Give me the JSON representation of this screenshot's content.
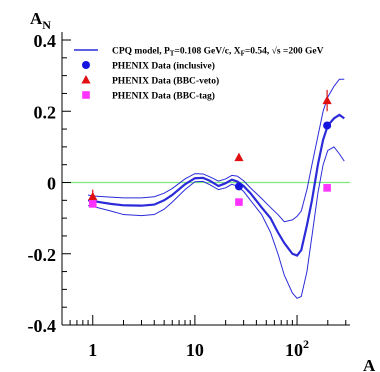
{
  "chart_data": {
    "type": "line",
    "ylabel": "A",
    "ylabel_sub": "N",
    "xlabel": "A",
    "xscale": "log",
    "xlim": [
      0.5,
      330
    ],
    "ylim": [
      -0.4,
      0.4
    ],
    "y_ticks": [
      {
        "value": 0.4,
        "label": "0.4"
      },
      {
        "value": 0.2,
        "label": "0.2"
      },
      {
        "value": 0,
        "label": "0"
      },
      {
        "value": -0.2,
        "label": "-0.2"
      },
      {
        "value": -0.4,
        "label": "-0.4"
      }
    ],
    "x_ticks": [
      {
        "value": 1,
        "label": "1"
      },
      {
        "value": 10,
        "label": "10"
      },
      {
        "value": 100,
        "label": "10",
        "sup": "2"
      }
    ],
    "zero_line_color": "#7ee87e",
    "model_color": "#2b2bd9",
    "legend_position": "top",
    "legend": [
      {
        "marker": "line",
        "color": "#2b2bd9",
        "parts": [
          {
            "t": "CPQ model, P"
          },
          {
            "t": "T",
            "sub": true
          },
          {
            "t": "=0.108 GeV/c, X"
          },
          {
            "t": "F",
            "sub": true
          },
          {
            "t": "=0.54, √s =200 GeV"
          }
        ]
      },
      {
        "marker": "circle",
        "color": "#1515e0",
        "parts": [
          {
            "t": "PHENIX Data (inclusive)"
          }
        ]
      },
      {
        "marker": "triangle",
        "color": "#e01010",
        "parts": [
          {
            "t": "PHENIX Data (BBC-veto)"
          }
        ]
      },
      {
        "marker": "square",
        "color": "#ff33ff",
        "parts": [
          {
            "t": "PHENIX Data (BBC-tag)"
          }
        ]
      }
    ],
    "series": [
      {
        "name": "PHENIX Data (inclusive)",
        "marker": "circle",
        "color": "#1515e0",
        "points": [
          {
            "x": 1,
            "y": -0.05,
            "err": 0.012
          },
          {
            "x": 27,
            "y": -0.011,
            "err": 0.006
          },
          {
            "x": 197,
            "y": 0.16,
            "err": 0.01
          }
        ]
      },
      {
        "name": "PHENIX Data (BBC-veto)",
        "marker": "triangle",
        "color": "#e01010",
        "points": [
          {
            "x": 1,
            "y": -0.04,
            "err": 0.02
          },
          {
            "x": 27,
            "y": 0.07,
            "err": 0.005
          },
          {
            "x": 197,
            "y": 0.23,
            "err": 0.03
          }
        ]
      },
      {
        "name": "PHENIX Data (BBC-tag)",
        "marker": "square",
        "color": "#ff33ff",
        "points": [
          {
            "x": 1,
            "y": -0.06,
            "err": 0.004
          },
          {
            "x": 27,
            "y": -0.055,
            "err": 0.004
          },
          {
            "x": 197,
            "y": -0.015,
            "err": 0.004
          }
        ]
      }
    ],
    "model": {
      "central": [
        [
          0.9,
          -0.05
        ],
        [
          1,
          -0.052
        ],
        [
          1.5,
          -0.06
        ],
        [
          2,
          -0.064
        ],
        [
          3,
          -0.065
        ],
        [
          4,
          -0.062
        ],
        [
          5,
          -0.05
        ],
        [
          6,
          -0.035
        ],
        [
          8,
          -0.005
        ],
        [
          10,
          0.012
        ],
        [
          12,
          0.013
        ],
        [
          14,
          0.005
        ],
        [
          17,
          -0.01
        ],
        [
          20,
          -0.002
        ],
        [
          23,
          0.008
        ],
        [
          26,
          0.003
        ],
        [
          30,
          -0.01
        ],
        [
          35,
          -0.03
        ],
        [
          45,
          -0.07
        ],
        [
          55,
          -0.1
        ],
        [
          65,
          -0.14
        ],
        [
          75,
          -0.17
        ],
        [
          90,
          -0.2
        ],
        [
          100,
          -0.205
        ],
        [
          110,
          -0.19
        ],
        [
          125,
          -0.12
        ],
        [
          140,
          -0.05
        ],
        [
          160,
          0.05
        ],
        [
          180,
          0.12
        ],
        [
          200,
          0.16
        ],
        [
          230,
          0.18
        ],
        [
          260,
          0.19
        ],
        [
          290,
          0.18
        ]
      ],
      "upper": [
        [
          0.9,
          -0.035
        ],
        [
          1,
          -0.038
        ],
        [
          1.5,
          -0.041
        ],
        [
          2,
          -0.043
        ],
        [
          3,
          -0.043
        ],
        [
          4,
          -0.04
        ],
        [
          5,
          -0.03
        ],
        [
          6,
          -0.017
        ],
        [
          8,
          0.01
        ],
        [
          10,
          0.025
        ],
        [
          12,
          0.024
        ],
        [
          14,
          0.016
        ],
        [
          17,
          0.004
        ],
        [
          20,
          0.01
        ],
        [
          23,
          0.02
        ],
        [
          26,
          0.018
        ],
        [
          30,
          0.005
        ],
        [
          35,
          -0.015
        ],
        [
          45,
          -0.045
        ],
        [
          55,
          -0.07
        ],
        [
          65,
          -0.09
        ],
        [
          75,
          -0.11
        ],
        [
          90,
          -0.105
        ],
        [
          100,
          -0.095
        ],
        [
          110,
          -0.08
        ],
        [
          125,
          -0.02
        ],
        [
          140,
          0.05
        ],
        [
          160,
          0.13
        ],
        [
          180,
          0.2
        ],
        [
          200,
          0.24
        ],
        [
          230,
          0.27
        ],
        [
          260,
          0.29
        ],
        [
          290,
          0.29
        ]
      ],
      "lower": [
        [
          0.9,
          -0.065
        ],
        [
          1,
          -0.067
        ],
        [
          1.5,
          -0.08
        ],
        [
          2,
          -0.09
        ],
        [
          3,
          -0.093
        ],
        [
          4,
          -0.09
        ],
        [
          5,
          -0.075
        ],
        [
          6,
          -0.055
        ],
        [
          8,
          -0.02
        ],
        [
          10,
          0.002
        ],
        [
          12,
          0.003
        ],
        [
          14,
          -0.006
        ],
        [
          17,
          -0.02
        ],
        [
          20,
          -0.015
        ],
        [
          23,
          -0.005
        ],
        [
          26,
          -0.01
        ],
        [
          30,
          -0.025
        ],
        [
          35,
          -0.05
        ],
        [
          45,
          -0.09
        ],
        [
          55,
          -0.14
        ],
        [
          65,
          -0.2
        ],
        [
          75,
          -0.26
        ],
        [
          90,
          -0.31
        ],
        [
          100,
          -0.325
        ],
        [
          110,
          -0.32
        ],
        [
          125,
          -0.25
        ],
        [
          140,
          -0.15
        ],
        [
          160,
          -0.03
        ],
        [
          180,
          0.05
        ],
        [
          200,
          0.09
        ],
        [
          230,
          0.1
        ],
        [
          260,
          0.08
        ],
        [
          290,
          0.06
        ]
      ]
    }
  }
}
